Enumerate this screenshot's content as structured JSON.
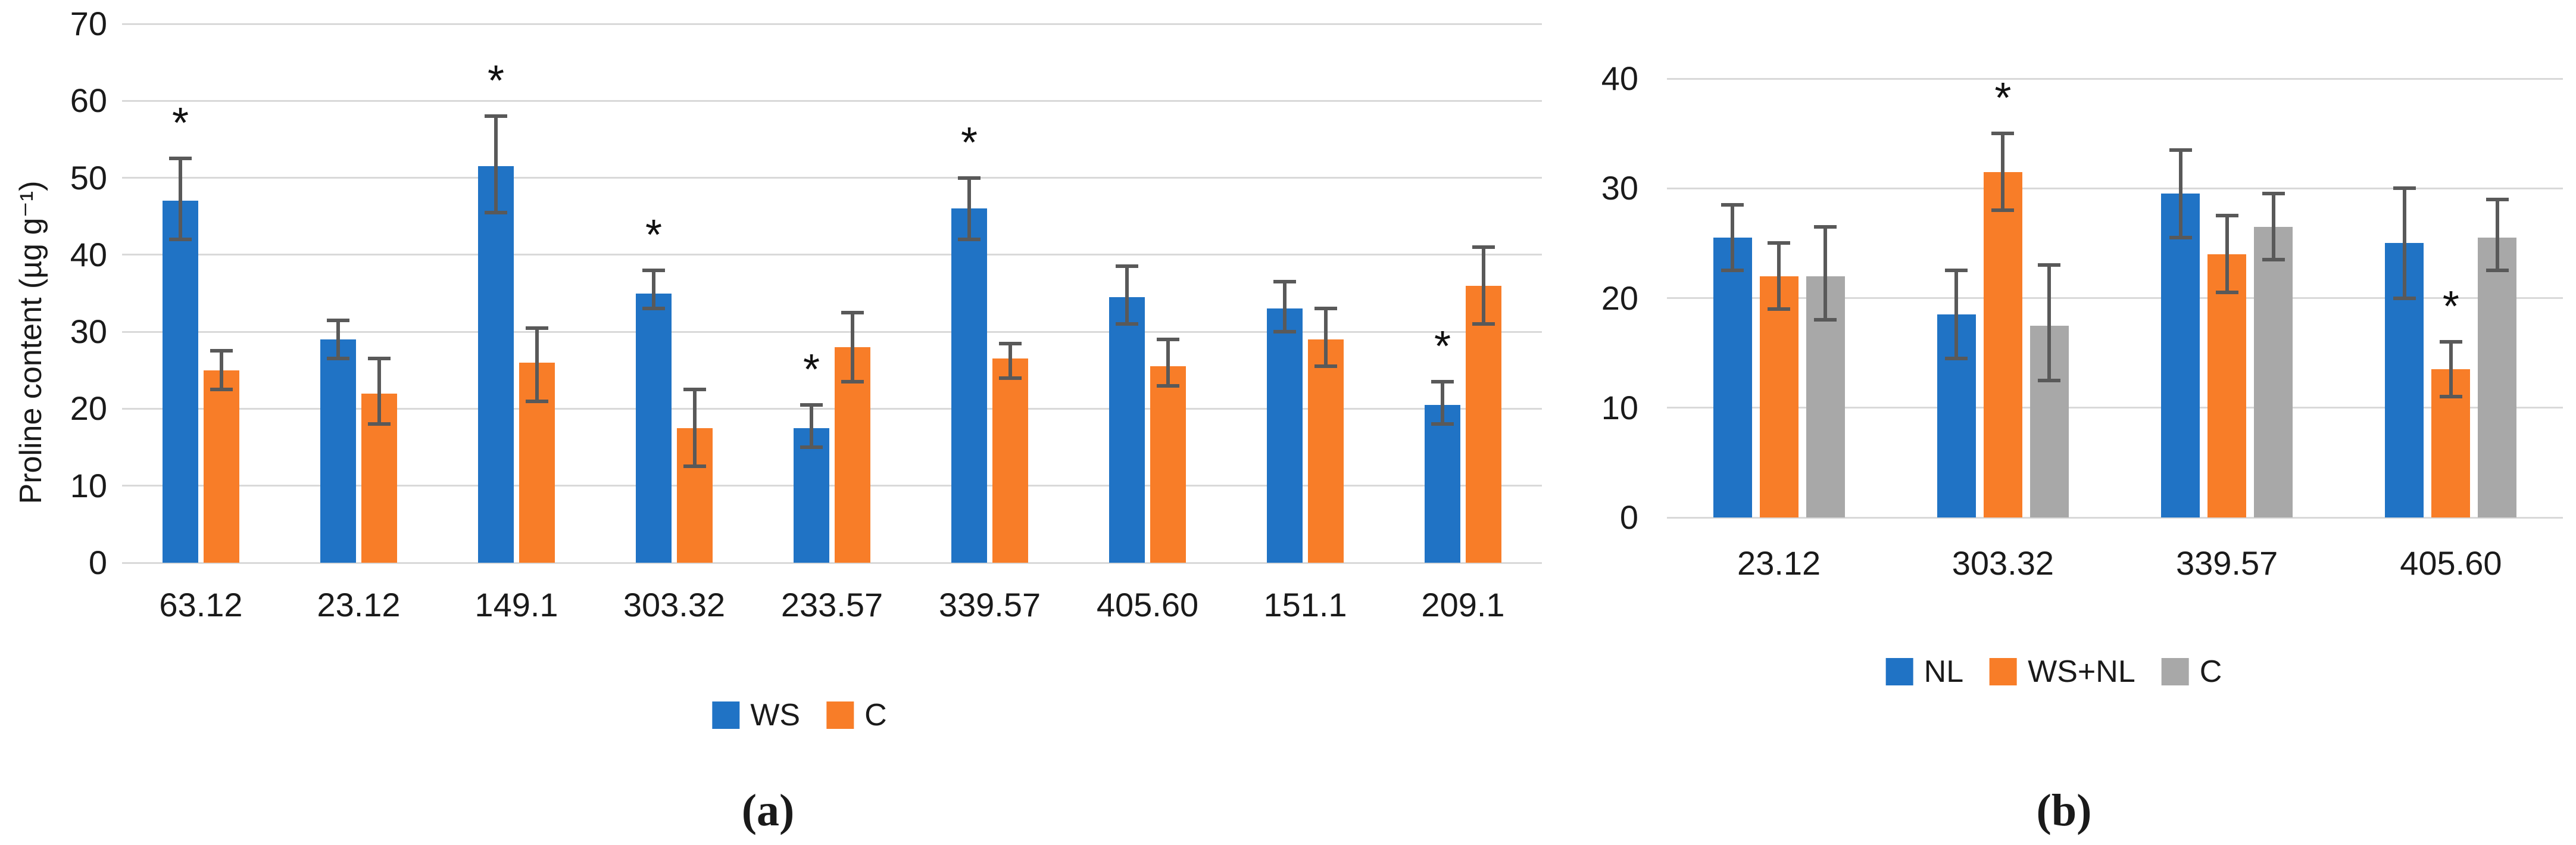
{
  "style": {
    "background": "#ffffff",
    "gridline_color": "#d9d9d9",
    "errorbar_color": "#595959",
    "text_color": "#1a1a1a",
    "series_blue": "#2073c5",
    "series_orange": "#f87d28",
    "series_gray": "#a8a8a8"
  },
  "chart_data": [
    {
      "id": "a",
      "type": "bar",
      "caption": "(a)",
      "title": "",
      "xlabel": "",
      "ylabel": "Proline content (µg g⁻¹)",
      "ylim": [
        0,
        70
      ],
      "ytick_step": 10,
      "grid": true,
      "legend_position": "bottom",
      "sig_symbol": "*",
      "categories": [
        "63.12",
        "23.12",
        "149.1",
        "303.32",
        "233.57",
        "339.57",
        "405.60",
        "151.1",
        "209.1"
      ],
      "series": [
        {
          "name": "WS",
          "color": "#2073c5",
          "values": [
            47,
            29,
            51.5,
            35,
            17.5,
            46,
            34.5,
            33,
            20.5
          ],
          "err_lo": [
            42,
            26.5,
            45.5,
            33,
            15,
            42,
            31,
            30,
            18
          ],
          "err_hi": [
            52.5,
            31.5,
            58,
            38,
            20.5,
            50,
            38.5,
            36.5,
            23.5
          ],
          "sig": [
            true,
            false,
            true,
            true,
            true,
            true,
            false,
            false,
            true
          ]
        },
        {
          "name": "C",
          "color": "#f87d28",
          "values": [
            25,
            22,
            26,
            17.5,
            28,
            26.5,
            25.5,
            29,
            36
          ],
          "err_lo": [
            22.5,
            18,
            21,
            12.5,
            23.5,
            24,
            23,
            25.5,
            31
          ],
          "err_hi": [
            27.5,
            26.5,
            30.5,
            22.5,
            32.5,
            28.5,
            29,
            33,
            41
          ],
          "sig": [
            false,
            false,
            false,
            false,
            false,
            false,
            false,
            false,
            false
          ]
        }
      ]
    },
    {
      "id": "b",
      "type": "bar",
      "caption": "(b)",
      "title": "",
      "xlabel": "",
      "ylabel": "",
      "ylim": [
        0,
        40
      ],
      "ytick_step": 10,
      "grid": true,
      "legend_position": "bottom",
      "sig_symbol": "*",
      "categories": [
        "23.12",
        "303.32",
        "339.57",
        "405.60"
      ],
      "series": [
        {
          "name": "NL",
          "color": "#2073c5",
          "values": [
            25.5,
            18.5,
            29.5,
            25
          ],
          "err_lo": [
            22.5,
            14.5,
            25.5,
            20
          ],
          "err_hi": [
            28.5,
            22.5,
            33.5,
            30
          ],
          "sig": [
            false,
            false,
            false,
            false
          ]
        },
        {
          "name": "WS+NL",
          "color": "#f87d28",
          "values": [
            22,
            31.5,
            24,
            13.5
          ],
          "err_lo": [
            19,
            28,
            20.5,
            11
          ],
          "err_hi": [
            25,
            35,
            27.5,
            16
          ],
          "sig": [
            false,
            true,
            false,
            true
          ]
        },
        {
          "name": "C",
          "color": "#a8a8a8",
          "values": [
            22,
            17.5,
            26.5,
            25.5
          ],
          "err_lo": [
            18,
            12.5,
            23.5,
            22.5
          ],
          "err_hi": [
            26.5,
            23,
            29.5,
            29
          ],
          "sig": [
            false,
            false,
            false,
            false
          ]
        }
      ]
    }
  ]
}
